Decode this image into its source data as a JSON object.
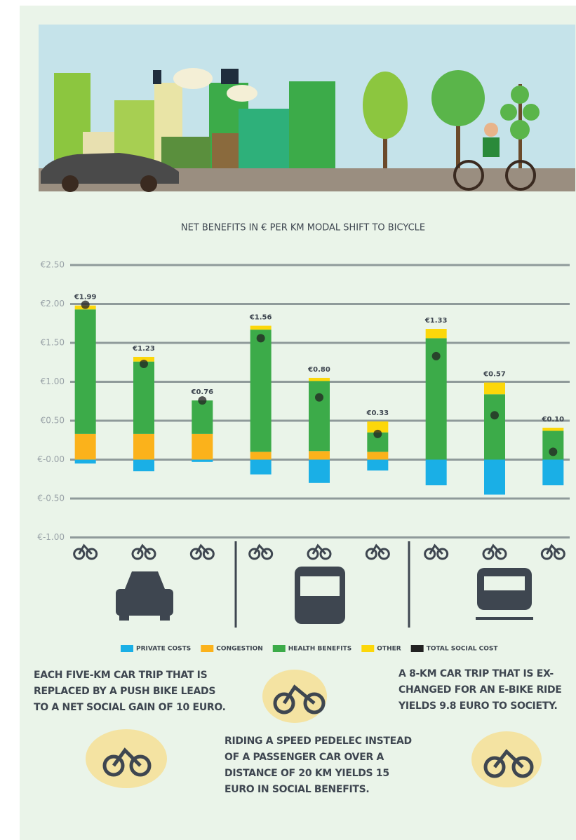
{
  "chart_data": {
    "type": "bar",
    "stacked": true,
    "title": "NET BENEFITS IN € PER KM MODAL SHIFT TO BICYCLE",
    "categories": [
      null,
      null,
      null,
      null,
      null,
      null,
      null,
      null,
      null
    ],
    "series": [
      {
        "name": "PRIVATE COSTS",
        "color": "#1aafe6",
        "values": [
          -0.05,
          -0.15,
          -0.03,
          -0.19,
          -0.3,
          -0.14,
          -0.33,
          -0.45,
          -0.33
        ]
      },
      {
        "name": "CONGESTION",
        "color": "#fbb21b",
        "values": [
          0.33,
          0.33,
          0.33,
          0.1,
          0.11,
          0.1,
          0,
          0,
          0
        ]
      },
      {
        "name": "HEALTH BENEFITS",
        "color": "#3cab49",
        "values": [
          1.6,
          0.93,
          0.43,
          1.57,
          0.9,
          0.25,
          1.56,
          0.84,
          0.37
        ]
      },
      {
        "name": "OTHER",
        "color": "#fcd70a",
        "values": [
          0.05,
          0.06,
          0,
          0.05,
          0.04,
          0.14,
          0.12,
          0.15,
          0.04
        ]
      },
      {
        "name": "TOTAL SOCIAL COST",
        "color": "#222222",
        "type": "dot",
        "values": [
          1.99,
          1.23,
          0.76,
          1.56,
          0.8,
          0.33,
          1.33,
          0.57,
          0.1
        ],
        "value_labels": [
          "€1.99",
          "€1.23",
          "€0.76",
          "€1.56",
          "€0.80",
          "€0.33",
          "€1.33",
          "€0.57",
          "€0.10"
        ]
      }
    ],
    "ylim": [
      -1,
      2.5
    ],
    "yticks": [
      {
        "value": -1,
        "label": "€-1.00"
      },
      {
        "value": -0.5,
        "label": "€-0.50"
      },
      {
        "value": 0,
        "label": "€-0.00"
      },
      {
        "value": 0.5,
        "label": "€0.50"
      },
      {
        "value": 1,
        "label": "€1.00"
      },
      {
        "value": 1.5,
        "label": "€1.50"
      },
      {
        "value": 2,
        "label": "€2.00"
      },
      {
        "value": 2.5,
        "label": "€2.50"
      }
    ],
    "grid": true,
    "legend": "bottom"
  },
  "notes": [
    "EACH FIVE-KM CAR TRIP THAT IS REPLACED BY A PUSH BIKE LEADS TO A NET SOCIAL GAIN OF 10 EURO.",
    "RIDING A SPEED PEDELEC INSTEAD OF A PASSENGER CAR OVER A DISTANCE OF 20 KM YIELDS 15 EURO IN SOCIAL BENEFITS.",
    "A 8-KM CAR TRIP THAT IS EX-CHANGED FOR AN E-BIKE RIDE YIELDS 9.8 EURO TO SOCIETY."
  ]
}
